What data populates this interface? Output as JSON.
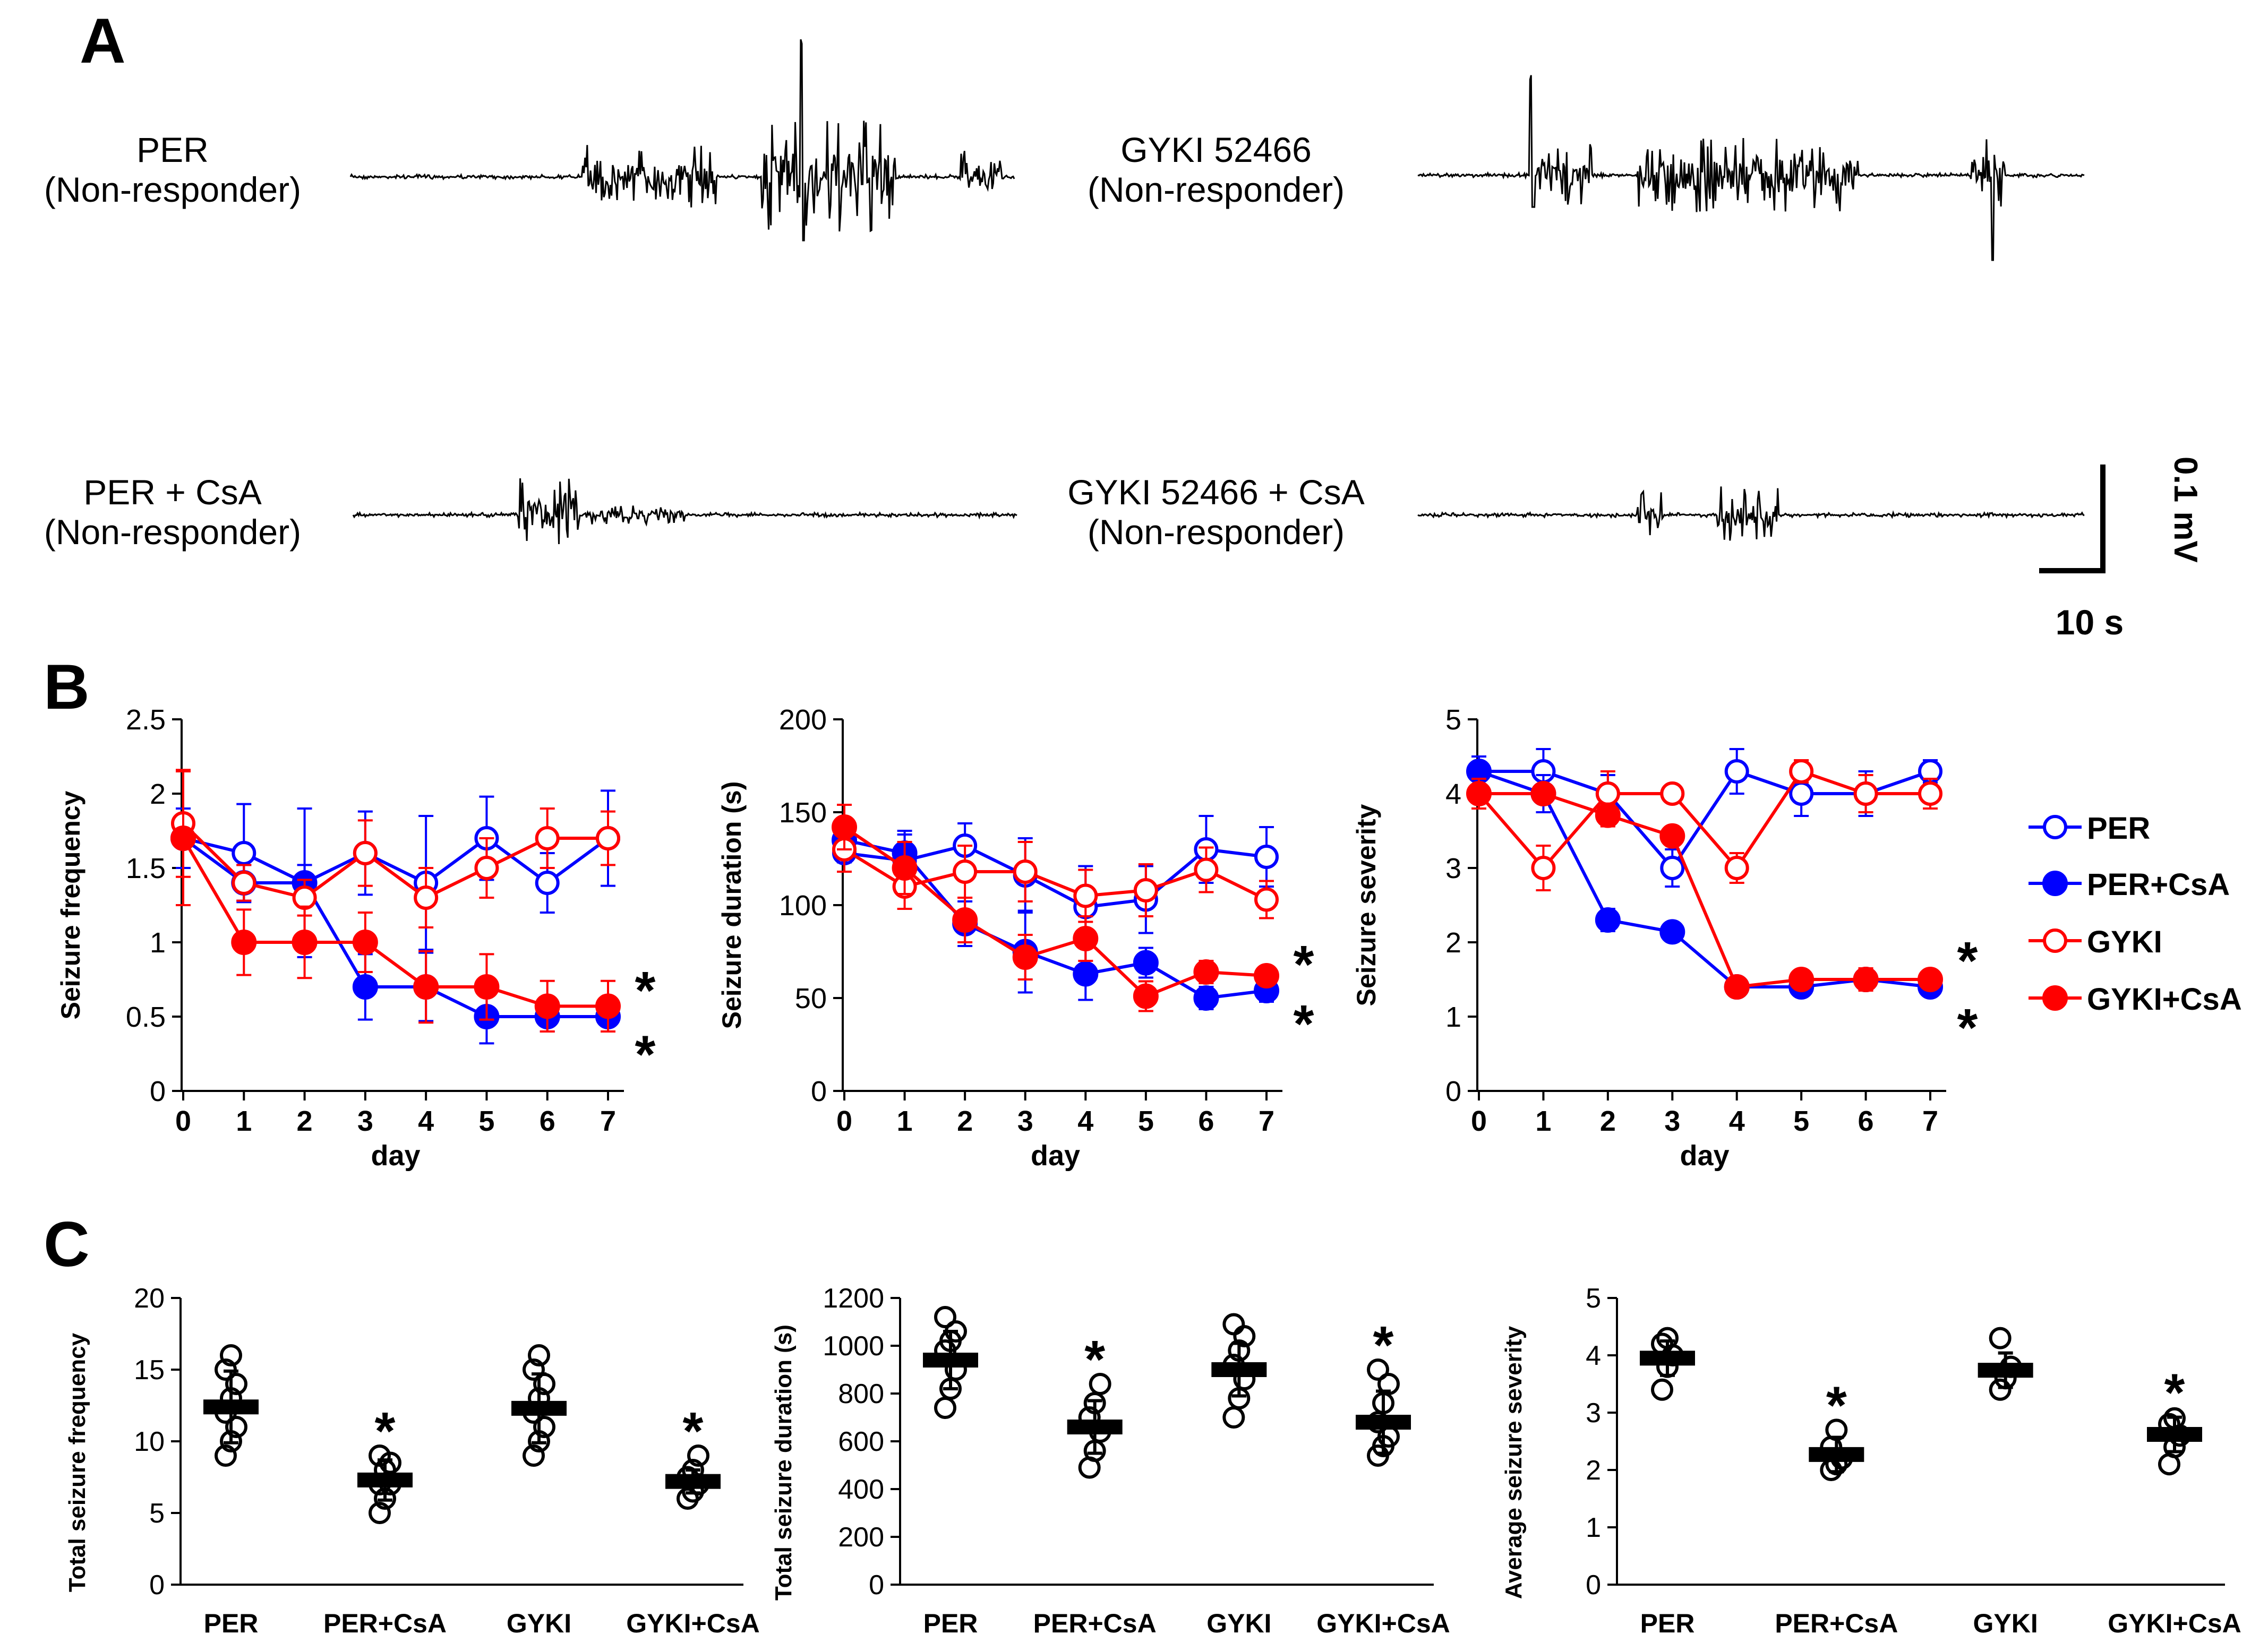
{
  "panels": {
    "A": "A",
    "B": "B",
    "C": "C"
  },
  "traces": [
    {
      "line1": "PER",
      "line2": "(Non-responder)"
    },
    {
      "line1": "GYKI 52466",
      "line2": "(Non-responder)"
    },
    {
      "line1": "PER + CsA",
      "line2": "(Non-responder)"
    },
    {
      "line1": "GYKI 52466 + CsA",
      "line2": "(Non-responder)"
    }
  ],
  "scalebar": {
    "vertical": "0.1 mV",
    "horizontal": "10 s"
  },
  "legend": [
    {
      "label": "PER",
      "color": "#0000ff",
      "filled": false
    },
    {
      "label": "PER+CsA",
      "color": "#0000ff",
      "filled": true
    },
    {
      "label": "GYKI",
      "color": "#ff0000",
      "filled": false
    },
    {
      "label": "GYKI+CsA",
      "color": "#ff0000",
      "filled": true
    }
  ],
  "chart_data": [
    {
      "type": "line",
      "ylabel": "Seizure frequency",
      "xlabel": "day",
      "x": [
        0,
        1,
        2,
        3,
        4,
        5,
        6,
        7
      ],
      "ylim": [
        0,
        2.5
      ],
      "yticks": [
        "0",
        "0.5",
        "1",
        "1.5",
        "2",
        "2.5"
      ],
      "significance": [
        "*",
        "*"
      ],
      "series": [
        {
          "name": "PER",
          "color": "#0000ff",
          "filled": false,
          "values": [
            1.7,
            1.6,
            1.4,
            1.6,
            1.4,
            1.7,
            1.4,
            1.7
          ],
          "err": [
            0.2,
            0.33,
            0.5,
            0.28,
            0.45,
            0.28,
            0.2,
            0.32
          ]
        },
        {
          "name": "PER+CsA",
          "color": "#0000ff",
          "filled": true,
          "values": [
            1.7,
            1.4,
            1.4,
            0.7,
            0.7,
            0.5,
            0.5,
            0.5
          ],
          "err": [
            0.2,
            0.12,
            0.12,
            0.22,
            0.23,
            0.18,
            0.1,
            0.1
          ]
        },
        {
          "name": "GYKI",
          "color": "#ff0000",
          "filled": false,
          "values": [
            1.8,
            1.4,
            1.3,
            1.6,
            1.3,
            1.5,
            1.7,
            1.7
          ],
          "err": [
            0.36,
            0.12,
            0.12,
            0.22,
            0.2,
            0.2,
            0.2,
            0.18
          ]
        },
        {
          "name": "GYKI+CsA",
          "color": "#ff0000",
          "filled": true,
          "values": [
            1.7,
            1.0,
            1.0,
            1.0,
            0.7,
            0.7,
            0.57,
            0.57
          ],
          "err": [
            0.45,
            0.22,
            0.24,
            0.2,
            0.24,
            0.22,
            0.17,
            0.17
          ]
        }
      ]
    },
    {
      "type": "line",
      "ylabel": "Seizure duration (s)",
      "xlabel": "day",
      "x": [
        0,
        1,
        2,
        3,
        4,
        5,
        6,
        7
      ],
      "ylim": [
        0,
        200
      ],
      "yticks": [
        "0",
        "50",
        "100",
        "150",
        "200"
      ],
      "significance": [
        "*",
        "*"
      ],
      "series": [
        {
          "name": "PER",
          "color": "#0000ff",
          "filled": false,
          "values": [
            128,
            124,
            132,
            116,
            99,
            103,
            130,
            126
          ],
          "err": [
            10,
            14,
            12,
            20,
            22,
            18,
            18,
            16
          ]
        },
        {
          "name": "PER+CsA",
          "color": "#0000ff",
          "filled": true,
          "values": [
            135,
            128,
            90,
            75,
            63,
            69,
            50,
            54
          ],
          "err": [
            12,
            12,
            12,
            22,
            14,
            8,
            6,
            6
          ]
        },
        {
          "name": "GYKI",
          "color": "#ff0000",
          "filled": false,
          "values": [
            130,
            110,
            118,
            118,
            105,
            108,
            119,
            103
          ],
          "err": [
            12,
            12,
            14,
            16,
            14,
            14,
            12,
            10
          ]
        },
        {
          "name": "GYKI+CsA",
          "color": "#ff0000",
          "filled": true,
          "values": [
            142,
            120,
            92,
            72,
            82,
            51,
            64,
            62
          ],
          "err": [
            12,
            14,
            12,
            12,
            12,
            8,
            6,
            4
          ]
        }
      ]
    },
    {
      "type": "line",
      "ylabel": "Seizure severity",
      "xlabel": "day",
      "x": [
        0,
        1,
        2,
        3,
        4,
        5,
        6,
        7
      ],
      "ylim": [
        0,
        5
      ],
      "yticks": [
        "0",
        "1",
        "2",
        "3",
        "4",
        "5"
      ],
      "significance": [
        "*",
        "*"
      ],
      "series": [
        {
          "name": "PER",
          "color": "#0000ff",
          "filled": false,
          "values": [
            4.3,
            4.3,
            4.0,
            3.0,
            4.3,
            4.0,
            4.0,
            4.3
          ],
          "err": [
            0.2,
            0.3,
            0.25,
            0.25,
            0.3,
            0.3,
            0.3,
            0.15
          ]
        },
        {
          "name": "PER+CsA",
          "color": "#0000ff",
          "filled": true,
          "values": [
            4.3,
            4.0,
            2.3,
            2.14,
            1.4,
            1.4,
            1.5,
            1.4
          ],
          "err": [
            0.2,
            0.25,
            0.15,
            0.1,
            0.1,
            0.12,
            0.12,
            0.1
          ]
        },
        {
          "name": "GYKI",
          "color": "#ff0000",
          "filled": false,
          "values": [
            4.0,
            3.0,
            4.0,
            4.0,
            3.0,
            4.3,
            4.0,
            4.0
          ],
          "err": [
            0.2,
            0.3,
            0.3,
            0.0,
            0.2,
            0.15,
            0.25,
            0.2
          ]
        },
        {
          "name": "GYKI+CsA",
          "color": "#ff0000",
          "filled": true,
          "values": [
            4.0,
            4.0,
            3.71,
            3.43,
            1.4,
            1.5,
            1.5,
            1.5
          ],
          "err": [
            0.2,
            0.1,
            0.15,
            0.1,
            0.1,
            0.1,
            0.15,
            0.1
          ]
        }
      ]
    },
    {
      "type": "scatter",
      "ylabel": "Total seizure frequency",
      "categories": [
        "PER",
        "PER+CsA",
        "GYKI",
        "GYKI+CsA"
      ],
      "ylim": [
        0,
        20
      ],
      "yticks": [
        "0",
        "5",
        "10",
        "15",
        "20"
      ],
      "means": [
        12.4,
        7.3,
        12.3,
        7.2
      ],
      "sd": [
        2.5,
        1.4,
        2.4,
        0.8
      ],
      "significance": [
        "",
        "*",
        "",
        "*"
      ],
      "points": [
        [
          9,
          10,
          11,
          12,
          13,
          14,
          15,
          16
        ],
        [
          5,
          6,
          7,
          7,
          8,
          8.5,
          9
        ],
        [
          9,
          10,
          11,
          12,
          13,
          14,
          15,
          16
        ],
        [
          6,
          6.5,
          7,
          7.5,
          8,
          9
        ]
      ]
    },
    {
      "type": "scatter",
      "ylabel": "Total seizure duration (s)",
      "categories": [
        "PER",
        "PER+CsA",
        "GYKI",
        "GYKI+CsA"
      ],
      "ylim": [
        0,
        1200
      ],
      "yticks": [
        "0",
        "200",
        "400",
        "600",
        "800",
        "1000",
        "1200"
      ],
      "means": [
        940,
        660,
        900,
        680
      ],
      "sd": [
        120,
        110,
        110,
        130
      ],
      "significance": [
        "",
        "*",
        "",
        "*"
      ],
      "points": [
        [
          740,
          820,
          900,
          980,
          1020,
          1060,
          1120
        ],
        [
          490,
          560,
          640,
          700,
          760,
          840
        ],
        [
          700,
          780,
          860,
          920,
          980,
          1040,
          1090
        ],
        [
          540,
          580,
          620,
          680,
          760,
          840,
          900
        ]
      ]
    },
    {
      "type": "scatter",
      "ylabel": "Average seizure severity",
      "categories": [
        "PER",
        "PER+CsA",
        "GYKI",
        "GYKI+CsA"
      ],
      "ylim": [
        0,
        5
      ],
      "yticks": [
        "0",
        "1",
        "2",
        "3",
        "4",
        "5"
      ],
      "means": [
        3.95,
        2.27,
        3.74,
        2.62
      ],
      "sd": [
        0.3,
        0.3,
        0.3,
        0.3
      ],
      "significance": [
        "",
        "*",
        "",
        "*"
      ],
      "points": [
        [
          3.4,
          3.8,
          4.0,
          4.2,
          4.3
        ],
        [
          2.0,
          2.1,
          2.2,
          2.4,
          2.7
        ],
        [
          3.4,
          3.6,
          3.8,
          4.3
        ],
        [
          2.1,
          2.4,
          2.6,
          2.8,
          2.9
        ]
      ]
    }
  ]
}
